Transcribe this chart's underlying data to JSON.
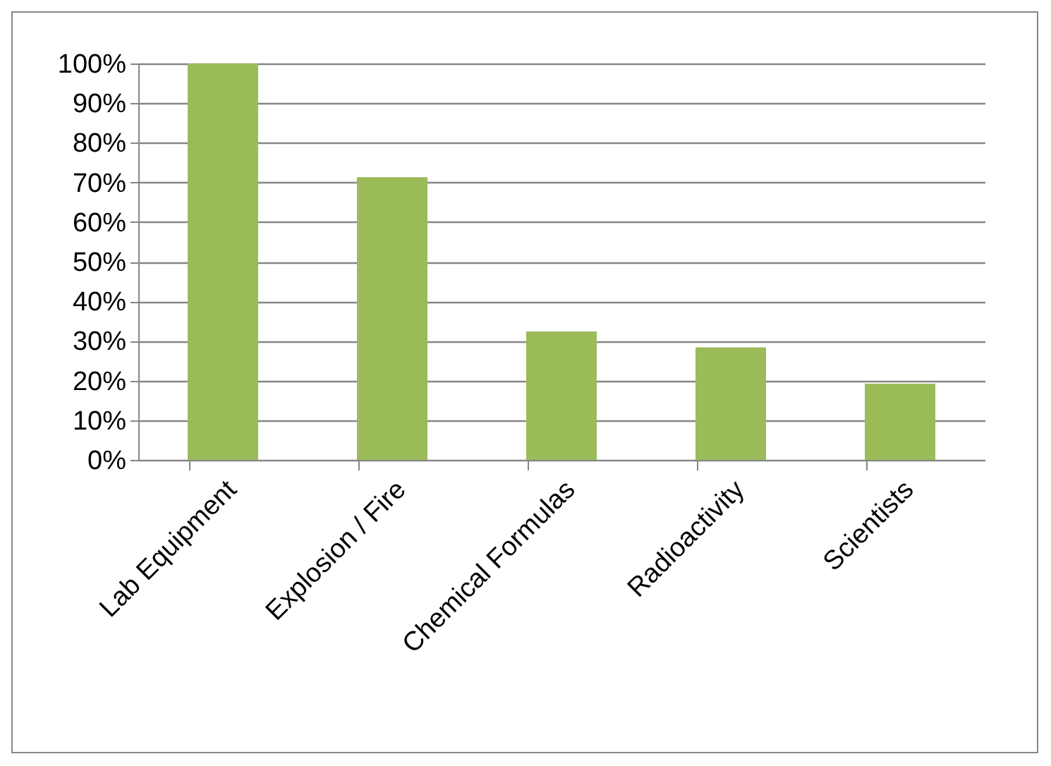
{
  "chart_data": {
    "type": "bar",
    "categories": [
      "Lab Equipment",
      "Explosion / Fire",
      "Chemical Formulas",
      "Radioactivity",
      "Scientists"
    ],
    "values": [
      100,
      71.3,
      32.4,
      28.4,
      19.2
    ],
    "color": "#9bbb59",
    "ylim": [
      0,
      100
    ],
    "yticks": [
      {
        "value": 0,
        "label": "0%"
      },
      {
        "value": 10,
        "label": "10%"
      },
      {
        "value": 20,
        "label": "20%"
      },
      {
        "value": 30,
        "label": "30%"
      },
      {
        "value": 40,
        "label": "40%"
      },
      {
        "value": 50,
        "label": "50%"
      },
      {
        "value": 60,
        "label": "60%"
      },
      {
        "value": 70,
        "label": "70%"
      },
      {
        "value": 80,
        "label": "80%"
      },
      {
        "value": 90,
        "label": "90%"
      },
      {
        "value": 100,
        "label": "100%"
      }
    ],
    "grid": "y"
  }
}
